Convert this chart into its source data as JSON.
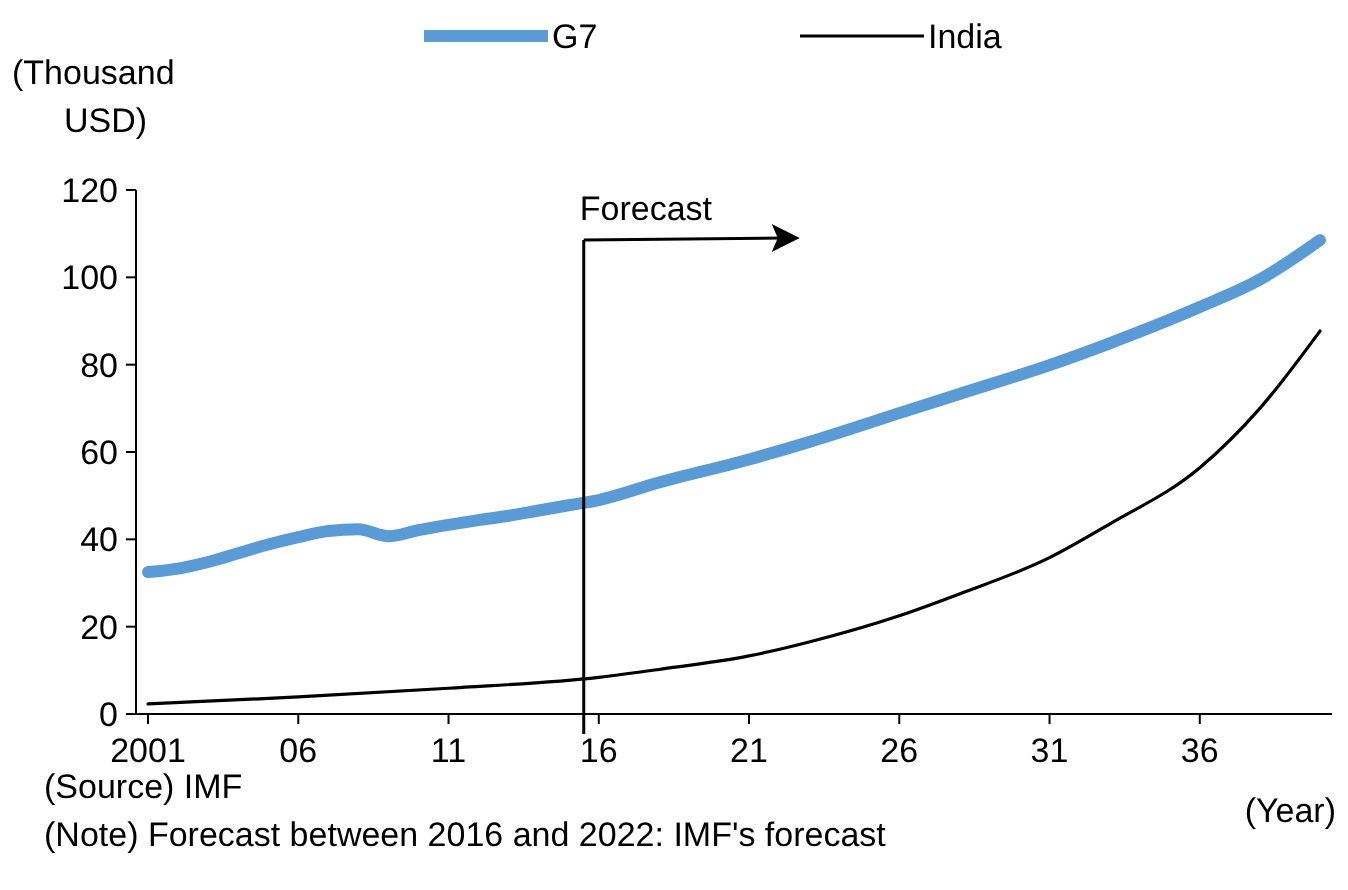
{
  "chart_data": {
    "type": "line",
    "ylabel": "(Thousand USD)",
    "xlabel": "(Year)",
    "legend": "top",
    "series": [
      {
        "name": "G7",
        "color": "#5b9bd5",
        "x": [
          2001,
          2002,
          2003,
          2004,
          2005,
          2006,
          2007,
          2008,
          2009,
          2010,
          2011,
          2012,
          2013,
          2014,
          2015,
          2016,
          2018,
          2021,
          2023,
          2026,
          2028,
          2031,
          2033,
          2036,
          2038,
          2040
        ],
        "values": [
          32.5,
          33.3,
          34.8,
          36.8,
          38.8,
          40.5,
          41.9,
          42.3,
          40.7,
          42.1,
          43.3,
          44.4,
          45.4,
          46.6,
          47.8,
          49,
          53,
          58.3,
          62.3,
          68.9,
          73.3,
          79.9,
          84.9,
          93.2,
          99.5,
          108.5
        ]
      },
      {
        "name": "India",
        "color": "#000000",
        "x": [
          2001,
          2006,
          2011,
          2016,
          2018,
          2021,
          2023,
          2026,
          2028,
          2031,
          2033,
          2036,
          2038,
          2040
        ],
        "values": [
          2.3,
          3.9,
          5.9,
          8.4,
          10.2,
          13.3,
          16.5,
          22.5,
          27.5,
          35.8,
          43.5,
          56.4,
          70,
          87.7
        ]
      }
    ],
    "xlim": [
      2000.6,
      2040.4
    ],
    "xticks": [
      {
        "value": 2001,
        "label": "2001"
      },
      {
        "value": 2006,
        "label": "06"
      },
      {
        "value": 2011,
        "label": "11"
      },
      {
        "value": 2016,
        "label": "16"
      },
      {
        "value": 2021,
        "label": "21"
      },
      {
        "value": 2026,
        "label": "26"
      },
      {
        "value": 2031,
        "label": "31"
      },
      {
        "value": 2036,
        "label": "36"
      }
    ],
    "ylim": [
      0,
      120
    ],
    "yticks": [
      0,
      20,
      40,
      60,
      80,
      100,
      120
    ],
    "grid": false,
    "marker": "none",
    "line_style": "solid",
    "ref_lines": [
      {
        "axis": "x",
        "value": 2015.5,
        "label": "Forecast",
        "color": "#000000"
      }
    ],
    "annotations": [
      "(Source) IMF",
      "(Note) Forecast between 2016 and 2022: IMF's forecast"
    ]
  }
}
